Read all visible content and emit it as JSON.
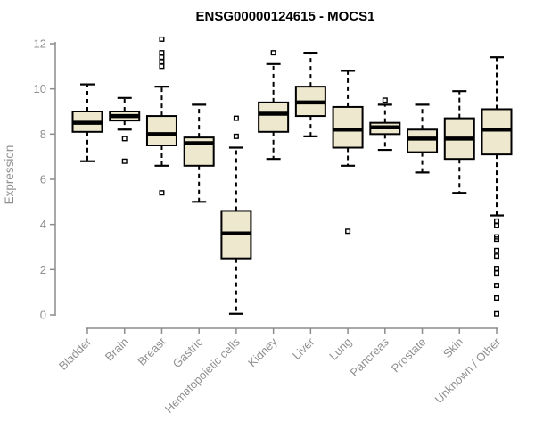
{
  "title": "ENSG00000124615 - MOCS1",
  "chart_data": {
    "type": "boxplot",
    "title": "ENSG00000124615 - MOCS1",
    "xlabel": "",
    "ylabel": "Expression",
    "ylim": [
      0,
      12
    ],
    "yticks": [
      0,
      2,
      4,
      6,
      8,
      10,
      12
    ],
    "grid": false,
    "legend": "none",
    "categories": [
      "Bladder",
      "Brain",
      "Breast",
      "Gastric",
      "Hematopoietic cells",
      "Kidney",
      "Liver",
      "Lung",
      "Pancreas",
      "Prostate",
      "Skin",
      "Unknown / Other"
    ],
    "series": [
      {
        "name": "Bladder",
        "whisker_low": 6.8,
        "q1": 8.1,
        "median": 8.5,
        "q3": 9.0,
        "whisker_high": 10.2,
        "outliers": []
      },
      {
        "name": "Brain",
        "whisker_low": 8.2,
        "q1": 8.6,
        "median": 8.8,
        "q3": 9.0,
        "whisker_high": 9.6,
        "outliers": [
          7.8,
          6.8
        ]
      },
      {
        "name": "Breast",
        "whisker_low": 6.6,
        "q1": 7.5,
        "median": 8.0,
        "q3": 8.8,
        "whisker_high": 10.1,
        "outliers": [
          12.2,
          11.6,
          11.4,
          11.2,
          11.0,
          5.4
        ]
      },
      {
        "name": "Gastric",
        "whisker_low": 5.0,
        "q1": 6.6,
        "median": 7.6,
        "q3": 7.85,
        "whisker_high": 9.3,
        "outliers": []
      },
      {
        "name": "Hematopoietic cells",
        "whisker_low": 0.05,
        "q1": 2.5,
        "median": 3.6,
        "q3": 4.6,
        "whisker_high": 7.4,
        "outliers": [
          8.7,
          7.9
        ]
      },
      {
        "name": "Kidney",
        "whisker_low": 6.9,
        "q1": 8.1,
        "median": 8.9,
        "q3": 9.4,
        "whisker_high": 11.1,
        "outliers": [
          11.6
        ]
      },
      {
        "name": "Liver",
        "whisker_low": 7.9,
        "q1": 8.8,
        "median": 9.4,
        "q3": 10.1,
        "whisker_high": 11.6,
        "outliers": []
      },
      {
        "name": "Lung",
        "whisker_low": 6.6,
        "q1": 7.4,
        "median": 8.2,
        "q3": 9.2,
        "whisker_high": 10.8,
        "outliers": [
          3.7
        ]
      },
      {
        "name": "Pancreas",
        "whisker_low": 7.3,
        "q1": 8.0,
        "median": 8.3,
        "q3": 8.5,
        "whisker_high": 9.3,
        "outliers": [
          9.5
        ]
      },
      {
        "name": "Prostate",
        "whisker_low": 6.3,
        "q1": 7.2,
        "median": 7.8,
        "q3": 8.2,
        "whisker_high": 9.3,
        "outliers": []
      },
      {
        "name": "Skin",
        "whisker_low": 5.4,
        "q1": 6.9,
        "median": 7.8,
        "q3": 8.7,
        "whisker_high": 9.9,
        "outliers": []
      },
      {
        "name": "Unknown / Other",
        "whisker_low": 4.4,
        "q1": 7.1,
        "median": 8.2,
        "q3": 9.1,
        "whisker_high": 11.4,
        "outliers": [
          4.15,
          3.95,
          3.45,
          3.35,
          2.85,
          2.6,
          2.05,
          1.85,
          1.3,
          0.75,
          0.05
        ]
      }
    ],
    "colors": {
      "box_fill": "#EEE8CE",
      "box_border": "#000000",
      "median": "#000000",
      "whisker": "#000000",
      "outlier_border": "#000000",
      "axis": "#8c8c8c",
      "tick_text": "#909090",
      "title_text": "#000000",
      "background": "#ffffff"
    }
  }
}
